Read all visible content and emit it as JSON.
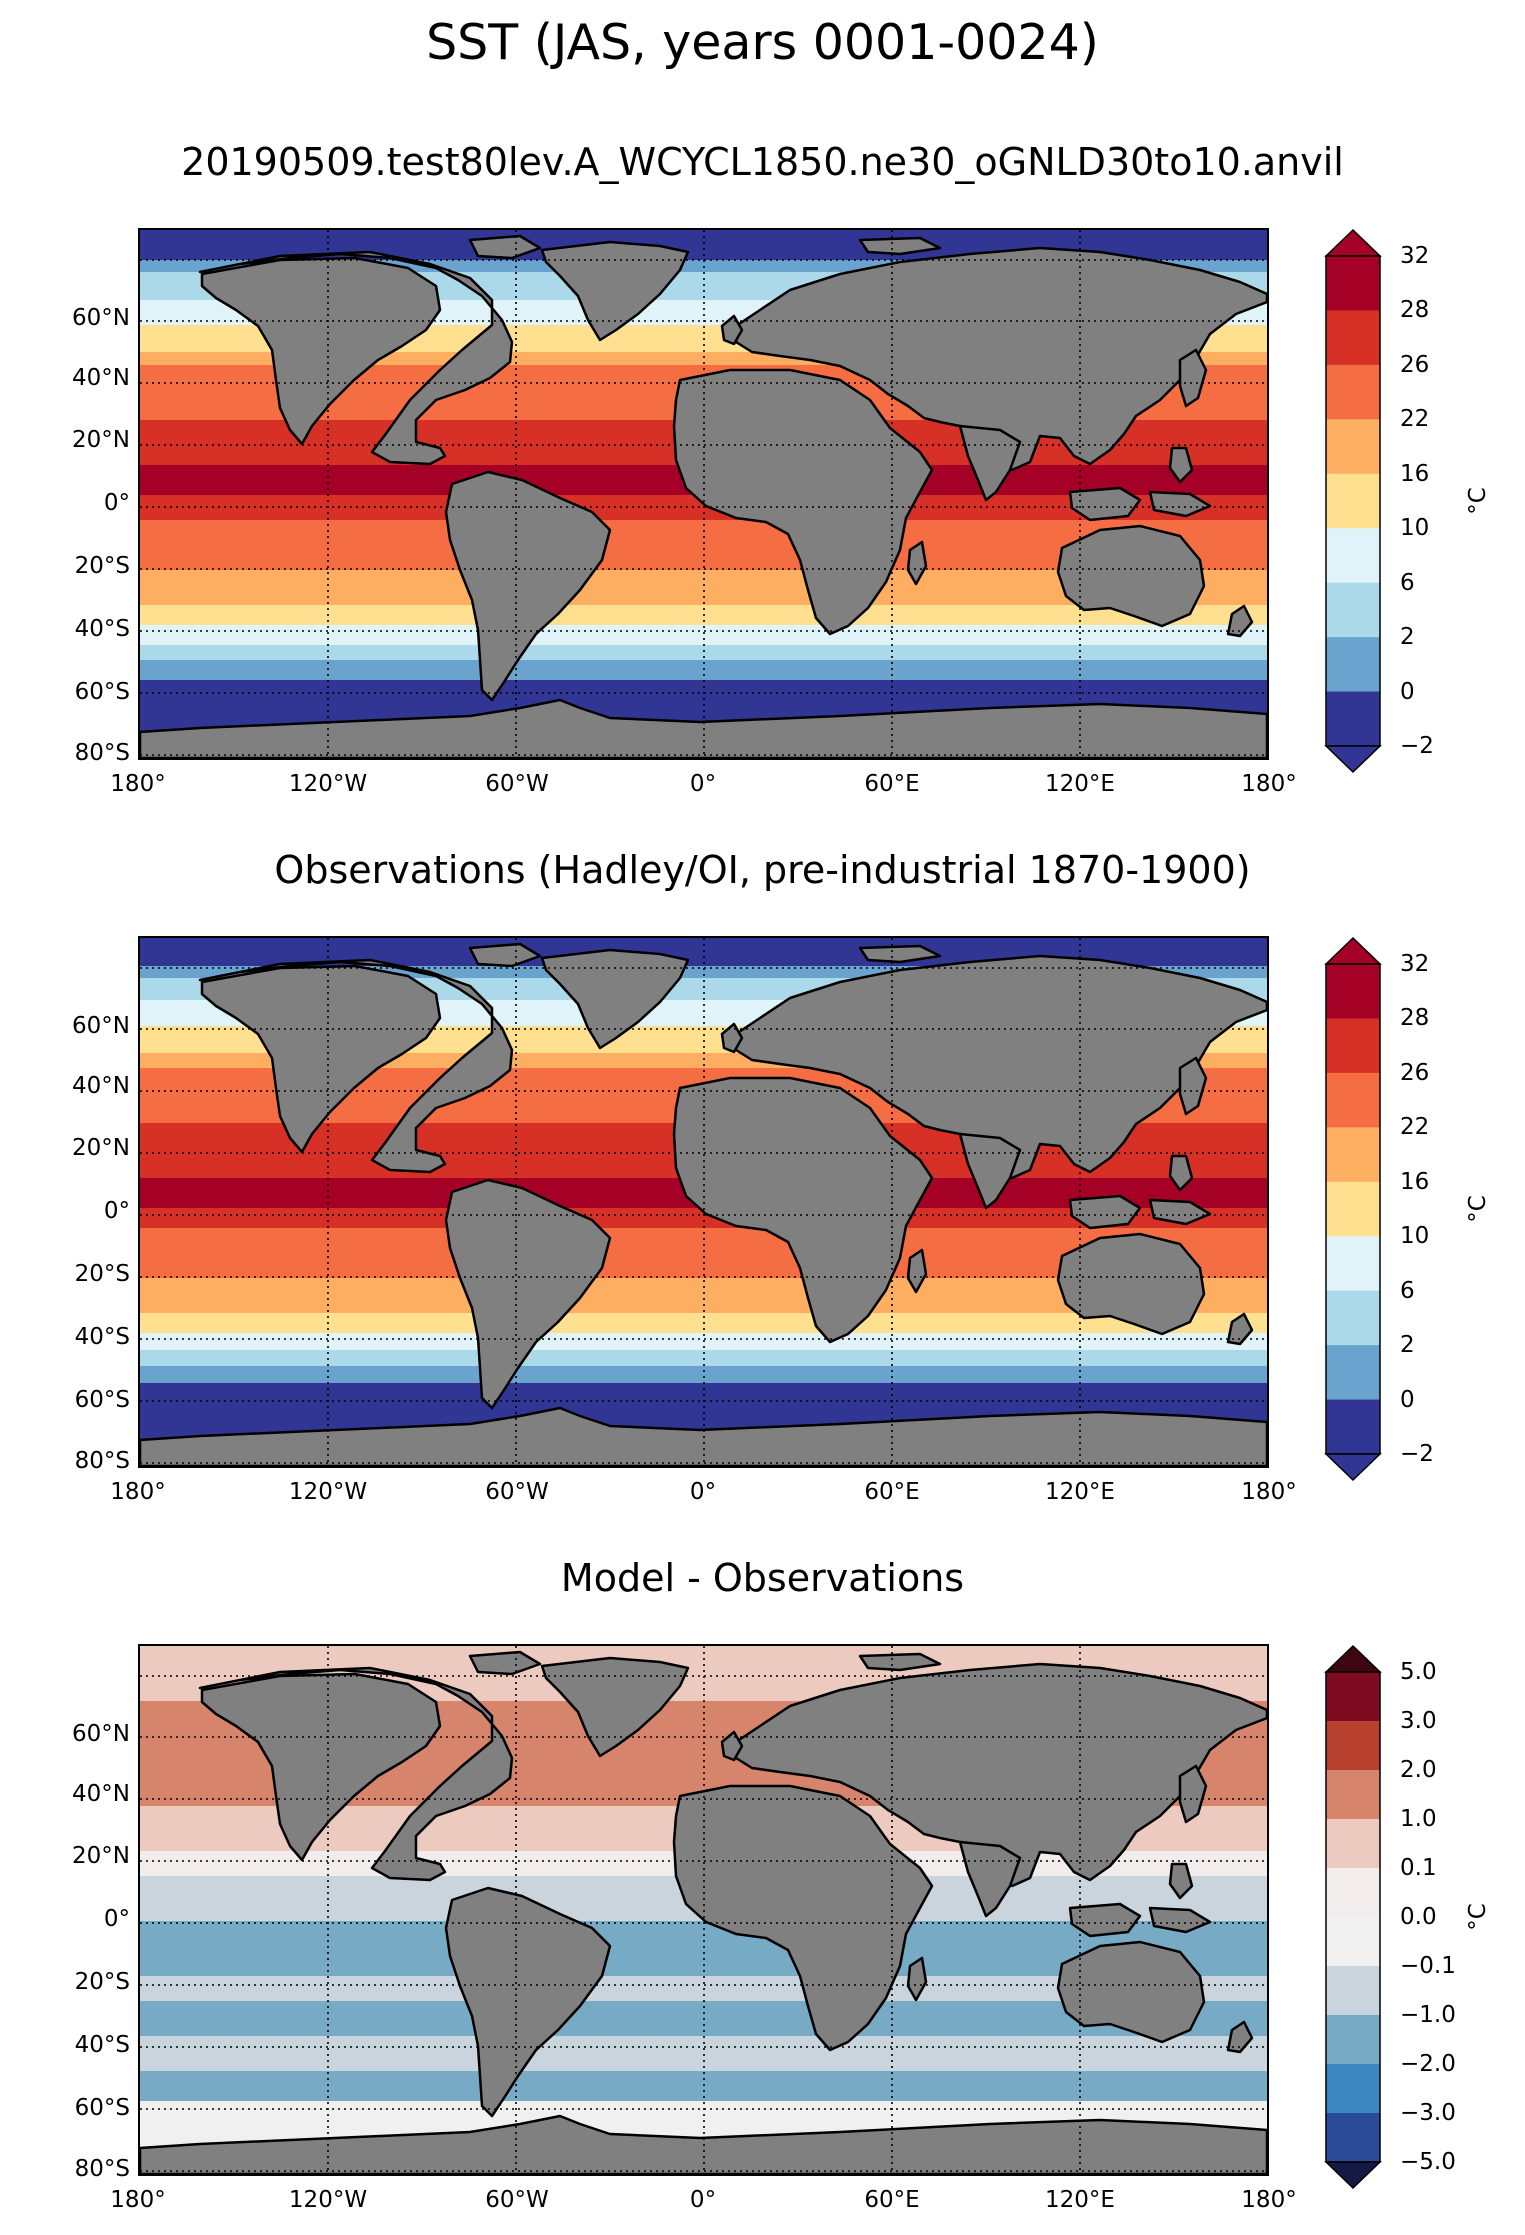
{
  "main_title": "SST (JAS, years 0001-0024)",
  "lat_labels": [
    "60°N",
    "40°N",
    "20°N",
    "0°",
    "20°S",
    "40°S",
    "60°S",
    "80°S"
  ],
  "lon_labels": [
    "180°",
    "120°W",
    "60°W",
    "0°",
    "60°E",
    "120°E",
    "180°"
  ],
  "land_color": "#808080",
  "panels": [
    {
      "title": "20190509.test80lev.A_WCYCL1850.ne30_oGNLD30to10.anvil",
      "colorbar": {
        "unit": "°C",
        "levels": [
          "32",
          "28",
          "26",
          "22",
          "16",
          "10",
          "6",
          "2",
          "0",
          "−2"
        ],
        "colors": [
          "#a50026",
          "#d73027",
          "#f46d43",
          "#fdae61",
          "#fee090",
          "#e0f3f8",
          "#abd9e9",
          "#6ba3cf",
          "#313695"
        ],
        "extend_top": "#a50026",
        "extend_bottom": "#313695"
      },
      "bands": [
        {
          "color": "#313695",
          "y": 0
        },
        {
          "color": "#6ba3cf",
          "y": 30
        },
        {
          "color": "#abd9e9",
          "y": 42
        },
        {
          "color": "#e0f3f8",
          "y": 70
        },
        {
          "color": "#fee090",
          "y": 95
        },
        {
          "color": "#fdae61",
          "y": 122
        },
        {
          "color": "#f46d43",
          "y": 135
        },
        {
          "color": "#d73027",
          "y": 190
        },
        {
          "color": "#a50026",
          "y": 235
        },
        {
          "color": "#d73027",
          "y": 265
        },
        {
          "color": "#f46d43",
          "y": 290
        },
        {
          "color": "#fdae61",
          "y": 340
        },
        {
          "color": "#fee090",
          "y": 375
        },
        {
          "color": "#e0f3f8",
          "y": 395
        },
        {
          "color": "#abd9e9",
          "y": 415
        },
        {
          "color": "#6ba3cf",
          "y": 430
        },
        {
          "color": "#313695",
          "y": 450
        }
      ]
    },
    {
      "title": "Observations (Hadley/OI, pre-industrial 1870-1900)",
      "colorbar": {
        "unit": "°C",
        "levels": [
          "32",
          "28",
          "26",
          "22",
          "16",
          "10",
          "6",
          "2",
          "0",
          "−2"
        ],
        "colors": [
          "#a50026",
          "#d73027",
          "#f46d43",
          "#fdae61",
          "#fee090",
          "#e0f3f8",
          "#abd9e9",
          "#6ba3cf",
          "#313695"
        ],
        "extend_top": "#a50026",
        "extend_bottom": "#313695"
      },
      "bands": [
        {
          "color": "#313695",
          "y": 0
        },
        {
          "color": "#6ba3cf",
          "y": 28
        },
        {
          "color": "#abd9e9",
          "y": 40
        },
        {
          "color": "#e0f3f8",
          "y": 62
        },
        {
          "color": "#fee090",
          "y": 88
        },
        {
          "color": "#fdae61",
          "y": 115
        },
        {
          "color": "#f46d43",
          "y": 130
        },
        {
          "color": "#d73027",
          "y": 185
        },
        {
          "color": "#a50026",
          "y": 240
        },
        {
          "color": "#d73027",
          "y": 270
        },
        {
          "color": "#f46d43",
          "y": 290
        },
        {
          "color": "#fdae61",
          "y": 340
        },
        {
          "color": "#fee090",
          "y": 375
        },
        {
          "color": "#e0f3f8",
          "y": 395
        },
        {
          "color": "#abd9e9",
          "y": 412
        },
        {
          "color": "#6ba3cf",
          "y": 428
        },
        {
          "color": "#313695",
          "y": 445
        }
      ]
    },
    {
      "title": "Model - Observations",
      "colorbar": {
        "unit": "°C",
        "levels": [
          "5.0",
          "3.0",
          "2.0",
          "1.0",
          "0.1",
          "0.0",
          "−0.1",
          "−1.0",
          "−2.0",
          "−3.0",
          "−5.0"
        ],
        "colors": [
          "#7f0b23",
          "#b8402f",
          "#d6846c",
          "#edcac0",
          "#f3ecec",
          "#f1f0f0",
          "#c9d4dd",
          "#77aac4",
          "#3b86c0",
          "#2b4b99"
        ],
        "extend_top": "#3d0610",
        "extend_bottom": "#141a45"
      },
      "bands": [
        {
          "color": "#edcac0",
          "y": 0
        },
        {
          "color": "#d6846c",
          "y": 55
        },
        {
          "color": "#edcac0",
          "y": 160
        },
        {
          "color": "#f3ecec",
          "y": 205
        },
        {
          "color": "#c9d4dd",
          "y": 230
        },
        {
          "color": "#77aac4",
          "y": 275
        },
        {
          "color": "#c9d4dd",
          "y": 330
        },
        {
          "color": "#77aac4",
          "y": 355
        },
        {
          "color": "#c9d4dd",
          "y": 390
        },
        {
          "color": "#77aac4",
          "y": 425
        },
        {
          "color": "#f1f0f0",
          "y": 455
        }
      ]
    }
  ]
}
